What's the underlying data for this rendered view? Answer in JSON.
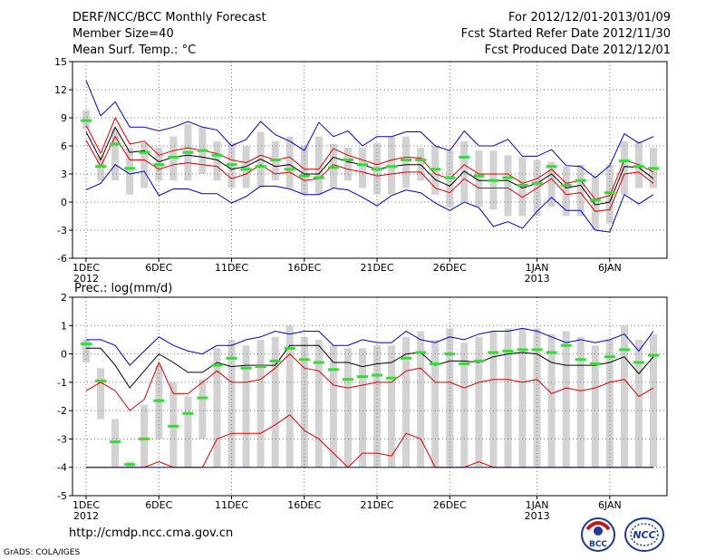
{
  "header": {
    "title": "DERF/NCC/BCC Monthly Forecast",
    "member_size": "Member Size=40",
    "variable": "Mean Surf. Temp.: °C",
    "period": "For 2012/12/01-2013/01/09",
    "start": "Fcst Started Refer Date 2012/11/30",
    "produced": "Fcst Produced Date 2012/12/01"
  },
  "footer": {
    "url": "http://cmdp.ncc.cma.gov.cn",
    "credit": "GrADS: COLA/IGES",
    "logo_bcc": "BCC",
    "logo_ncc": "NCC"
  },
  "colors": {
    "box": "#d2d2d2",
    "median": "#33dd33",
    "max_min": "#0000cc",
    "mean": "#000000",
    "spread": "#dd0000",
    "grid": "#777777"
  },
  "chart_data": [
    {
      "type": "box-time-series",
      "title": "Mean Surf. Temp.: °C",
      "x_tick_labels": [
        "1DEC",
        "6DEC",
        "11DEC",
        "16DEC",
        "21DEC",
        "26DEC",
        "1JAN",
        "6JAN"
      ],
      "x_tick_days": [
        1,
        6,
        11,
        16,
        21,
        26,
        32,
        37
      ],
      "x_sub_labels": [
        "2012",
        "2013"
      ],
      "ylim": [
        -6,
        15
      ],
      "yticks": [
        -6,
        -3,
        0,
        3,
        6,
        9,
        12,
        15
      ],
      "days": 40,
      "median": [
        8.7,
        3.8,
        6.2,
        3.6,
        5.3,
        4.0,
        4.8,
        5.3,
        5.5,
        5.0,
        4.0,
        3.5,
        3.8,
        4.5,
        3.5,
        2.8,
        2.6,
        3.7,
        4.5,
        4.0,
        3.5,
        3.8,
        4.5,
        4.5,
        3.5,
        2.6,
        4.8,
        2.8,
        2.3,
        2.6,
        1.8,
        2.0,
        3.8,
        1.8,
        2.3,
        0.2,
        1.0,
        4.4,
        3.8,
        3.6
      ],
      "box_high": [
        9.8,
        5.0,
        7.8,
        5.8,
        6.3,
        5.8,
        7.0,
        8.3,
        8.0,
        6.5,
        6.3,
        6.0,
        7.5,
        6.5,
        7.0,
        6.0,
        7.0,
        6.2,
        5.8,
        5.8,
        6.3,
        7.0,
        7.0,
        5.8,
        6.0,
        5.5,
        6.5,
        5.5,
        5.5,
        5.0,
        4.8,
        4.5,
        4.3,
        3.8,
        4.0,
        2.8,
        4.0,
        6.5,
        6.5,
        5.8
      ],
      "box_low": [
        7.8,
        2.3,
        2.3,
        0.8,
        1.5,
        2.3,
        2.3,
        2.3,
        3.0,
        2.3,
        1.5,
        1.5,
        1.5,
        2.3,
        1.5,
        0.8,
        0.8,
        1.5,
        2.3,
        1.5,
        0.8,
        0.8,
        1.5,
        2.3,
        0.8,
        -0.5,
        0.0,
        -0.5,
        -0.8,
        -1.5,
        -1.5,
        -1.5,
        -0.5,
        -1.5,
        -1.5,
        -3.0,
        -2.3,
        0.8,
        1.5,
        1.5
      ],
      "series": [
        {
          "name": "max",
          "values": [
            13.0,
            9.2,
            10.7,
            8.0,
            8.0,
            7.6,
            8.0,
            8.6,
            8.0,
            7.7,
            6.0,
            6.7,
            8.6,
            7.2,
            6.5,
            5.5,
            8.5,
            7.0,
            7.6,
            6.0,
            7.0,
            7.0,
            7.5,
            7.5,
            6.0,
            5.5,
            7.6,
            6.0,
            6.0,
            6.7,
            4.9,
            4.9,
            5.6,
            3.9,
            3.8,
            2.6,
            3.9,
            7.3,
            6.3,
            7.0
          ]
        },
        {
          "name": "spread_high",
          "values": [
            8.2,
            5.2,
            9.0,
            6.2,
            6.5,
            5.0,
            5.5,
            5.8,
            5.5,
            5.2,
            4.5,
            4.2,
            5.0,
            4.5,
            4.8,
            3.5,
            3.5,
            5.7,
            5.0,
            4.5,
            4.0,
            4.5,
            4.8,
            4.7,
            3.0,
            2.5,
            4.0,
            3.0,
            3.0,
            3.0,
            2.0,
            2.5,
            3.5,
            2.0,
            2.3,
            0.3,
            0.7,
            4.5,
            4.0,
            3.2
          ]
        },
        {
          "name": "mean",
          "values": [
            7.5,
            4.5,
            8.0,
            5.3,
            5.5,
            4.3,
            4.8,
            5.0,
            4.8,
            4.5,
            3.5,
            3.8,
            4.6,
            3.8,
            4.0,
            3.0,
            3.0,
            4.8,
            4.3,
            4.0,
            3.5,
            3.8,
            4.0,
            4.0,
            2.4,
            1.7,
            3.3,
            2.3,
            2.3,
            2.3,
            1.5,
            2.0,
            3.0,
            1.5,
            1.8,
            -0.3,
            0.0,
            3.8,
            3.7,
            2.5
          ]
        },
        {
          "name": "spread_low",
          "values": [
            6.6,
            3.8,
            7.0,
            4.5,
            4.5,
            3.5,
            4.0,
            4.2,
            4.0,
            3.8,
            2.5,
            3.0,
            4.0,
            3.0,
            3.2,
            2.3,
            2.5,
            4.0,
            3.5,
            3.2,
            2.8,
            3.0,
            3.2,
            3.2,
            1.5,
            1.0,
            2.5,
            1.5,
            1.5,
            1.5,
            0.5,
            1.5,
            2.5,
            0.8,
            1.0,
            -1.0,
            -0.8,
            3.0,
            3.2,
            2.0
          ]
        },
        {
          "name": "min",
          "values": [
            1.3,
            2.0,
            4.0,
            3.0,
            3.3,
            0.7,
            1.4,
            1.4,
            0.9,
            0.9,
            -0.1,
            0.6,
            1.7,
            1.7,
            1.4,
            0.8,
            0.8,
            1.5,
            1.3,
            0.5,
            -0.4,
            0.7,
            1.3,
            1.0,
            -0.1,
            -0.9,
            0.0,
            -0.6,
            -2.6,
            -2.1,
            -2.8,
            -1.0,
            0.5,
            -0.9,
            -0.9,
            -3.0,
            -3.2,
            0.8,
            -0.2,
            0.8
          ]
        }
      ]
    },
    {
      "type": "box-time-series",
      "title": "Prec.: log(mm/d)",
      "x_tick_labels": [
        "1DEC",
        "6DEC",
        "11DEC",
        "16DEC",
        "21DEC",
        "26DEC",
        "1JAN",
        "6JAN"
      ],
      "x_tick_days": [
        1,
        6,
        11,
        16,
        21,
        26,
        32,
        37
      ],
      "x_sub_labels": [
        "2012",
        "2013"
      ],
      "ylim": [
        -5,
        2
      ],
      "yticks": [
        -5,
        -4,
        -3,
        -2,
        -1,
        0,
        1,
        2
      ],
      "days": 40,
      "median": [
        0.35,
        -0.95,
        -3.1,
        -3.9,
        -3.0,
        -1.65,
        -2.55,
        -2.1,
        -1.55,
        -0.4,
        -0.15,
        -0.5,
        -0.45,
        -0.25,
        0.2,
        -0.2,
        -0.3,
        -0.55,
        -0.9,
        -0.8,
        -0.75,
        -0.85,
        -0.15,
        0.05,
        -0.35,
        0.0,
        -0.35,
        -0.25,
        0.05,
        0.1,
        0.15,
        0.15,
        0.05,
        0.3,
        -0.2,
        -0.35,
        -0.1,
        0.15,
        -0.3,
        -0.05
      ],
      "box_high": [
        0.5,
        -0.5,
        -2.3,
        -3.8,
        -1.8,
        -0.4,
        -1.0,
        -1.5,
        -0.9,
        0.2,
        0.5,
        0.3,
        0.5,
        0.6,
        1.0,
        0.6,
        0.5,
        0.3,
        0.2,
        0.2,
        0.3,
        0.3,
        0.6,
        0.8,
        0.5,
        0.9,
        0.4,
        0.6,
        0.8,
        0.9,
        0.9,
        0.9,
        0.7,
        0.8,
        0.6,
        0.3,
        0.5,
        1.0,
        0.5,
        0.7
      ],
      "box_low": [
        -0.3,
        -2.3,
        -4.0,
        -4.0,
        -4.0,
        -3.0,
        -4.0,
        -4.0,
        -3.0,
        -4.0,
        -4.0,
        -4.0,
        -4.0,
        -4.0,
        -4.0,
        -4.0,
        -4.0,
        -4.0,
        -4.0,
        -4.0,
        -4.0,
        -4.0,
        -4.0,
        -4.0,
        -4.0,
        -4.0,
        -4.0,
        -4.0,
        -4.0,
        -4.0,
        -4.0,
        -4.0,
        -4.0,
        -4.0,
        -4.0,
        -4.0,
        -4.0,
        -4.0,
        -4.0,
        -4.0
      ],
      "series": [
        {
          "name": "max",
          "values": [
            0.5,
            0.5,
            0.3,
            -0.4,
            0.1,
            0.6,
            0.3,
            0.1,
            0.0,
            0.3,
            0.3,
            0.5,
            0.6,
            0.8,
            0.7,
            0.8,
            0.8,
            0.3,
            0.3,
            0.5,
            0.4,
            0.4,
            0.8,
            0.5,
            0.4,
            0.6,
            0.5,
            0.7,
            0.8,
            0.8,
            0.9,
            0.8,
            0.6,
            0.4,
            0.5,
            0.4,
            0.5,
            0.7,
            0.1,
            0.8
          ]
        },
        {
          "name": "mean",
          "values": [
            0.2,
            0.2,
            -0.4,
            -1.2,
            -0.6,
            0.0,
            -0.3,
            -0.65,
            -0.65,
            -0.3,
            -0.45,
            -0.4,
            -0.4,
            -0.4,
            0.3,
            0.3,
            0.3,
            -0.3,
            -0.3,
            -0.45,
            -0.35,
            -0.3,
            0.0,
            0.05,
            -0.4,
            -0.25,
            -0.25,
            -0.3,
            -0.1,
            0.0,
            0.05,
            0.0,
            -0.3,
            -0.4,
            -0.4,
            -0.4,
            -0.3,
            -0.1,
            -0.7,
            -0.1
          ]
        },
        {
          "name": "spread_high",
          "values": [
            -1.3,
            -1.0,
            -1.3,
            -2.0,
            -1.6,
            -0.3,
            -1.4,
            -1.4,
            -1.0,
            -0.6,
            -1.0,
            -1.0,
            -0.9,
            -0.5,
            0.0,
            -0.5,
            -0.6,
            -1.1,
            -1.2,
            -1.1,
            -1.0,
            -1.0,
            -0.6,
            -0.5,
            -1.0,
            -1.0,
            -1.2,
            -1.0,
            -0.9,
            -0.9,
            -1.0,
            -0.9,
            -1.4,
            -1.2,
            -1.3,
            -1.2,
            -1.0,
            -0.9,
            -1.5,
            -1.2
          ]
        },
        {
          "name": "spread_low",
          "values": [
            -4.0,
            -4.0,
            -4.0,
            -4.0,
            -4.0,
            -3.8,
            -4.0,
            -4.0,
            -4.0,
            -3.0,
            -2.8,
            -2.8,
            -2.8,
            -2.5,
            -2.15,
            -2.7,
            -3.0,
            -3.5,
            -4.0,
            -3.5,
            -3.5,
            -3.6,
            -2.8,
            -3.0,
            -4.0,
            -4.0,
            -4.0,
            -3.8,
            -4.0,
            -4.0,
            -4.0,
            -4.0,
            -4.0,
            -4.0,
            -4.0,
            -4.0,
            -4.0,
            -4.0,
            -4.0,
            -4.0
          ]
        },
        {
          "name": "min",
          "values": [
            -4.0,
            -4.0,
            -4.0,
            -4.0,
            -4.0,
            -4.0,
            -4.0,
            -4.0,
            -4.0,
            -4.0,
            -4.0,
            -4.0,
            -4.0,
            -4.0,
            -4.0,
            -4.0,
            -4.0,
            -4.0,
            -4.0,
            -4.0,
            -4.0,
            -4.0,
            -4.0,
            -4.0,
            -4.0,
            -4.0,
            -4.0,
            -4.0,
            -4.0,
            -4.0,
            -4.0,
            -4.0,
            -4.0,
            -4.0,
            -4.0,
            -4.0,
            -4.0,
            -4.0,
            -4.0,
            -4.0
          ]
        }
      ]
    }
  ]
}
